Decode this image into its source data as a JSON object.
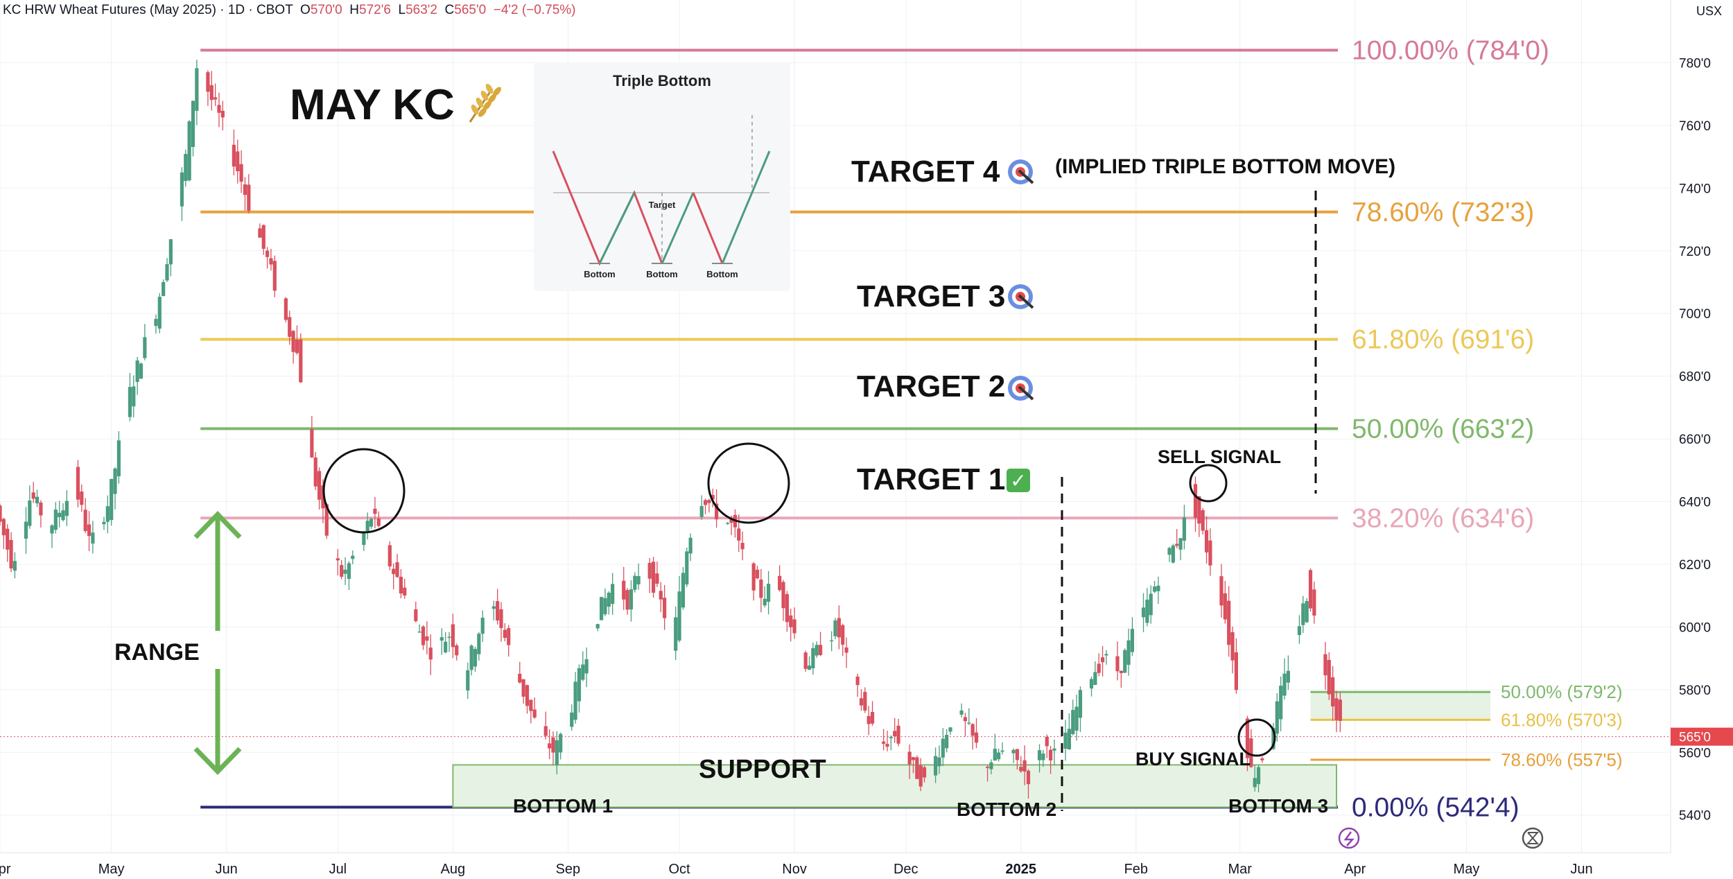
{
  "header": {
    "symbol": "KC HRW Wheat Futures (May 2025) · 1D · CBOT",
    "open_label": "O",
    "open": "570'0",
    "high_label": "H",
    "high": "572'6",
    "low_label": "L",
    "low": "563'2",
    "close_label": "C",
    "close": "565'0",
    "change": "−4'2 (−0.75%)",
    "currency": "USX"
  },
  "title": "MAY KC",
  "title_icon": "wheat-icon",
  "inset": {
    "title": "Triple Bottom",
    "target_label": "Target",
    "bottom_labels": [
      "Bottom",
      "Bottom",
      "Bottom"
    ]
  },
  "chart_data": {
    "type": "candlestick",
    "y_axis": {
      "range": [
        528,
        800
      ],
      "ticks": [
        540,
        560,
        580,
        600,
        620,
        640,
        660,
        680,
        700,
        720,
        740,
        760,
        780
      ],
      "tick_labels": [
        "540'0",
        "560'0",
        "580'0",
        "600'0",
        "620'0",
        "640'0",
        "660'0",
        "680'0",
        "700'0",
        "720'0",
        "740'0",
        "760'0",
        "780'0"
      ],
      "position": "right"
    },
    "x_axis": {
      "range": [
        "2024-04-01",
        "2025-06-25"
      ],
      "ticks": [
        {
          "date": "2024-04-01",
          "label": "Apr"
        },
        {
          "date": "2024-05-01",
          "label": "May"
        },
        {
          "date": "2024-06-01",
          "label": "Jun"
        },
        {
          "date": "2024-07-01",
          "label": "Jul"
        },
        {
          "date": "2024-08-01",
          "label": "Aug"
        },
        {
          "date": "2024-09-01",
          "label": "Sep"
        },
        {
          "date": "2024-10-01",
          "label": "Oct"
        },
        {
          "date": "2024-11-01",
          "label": "Nov"
        },
        {
          "date": "2024-12-01",
          "label": "Dec"
        },
        {
          "date": "2025-01-01",
          "label": "2025"
        },
        {
          "date": "2025-02-01",
          "label": "Feb"
        },
        {
          "date": "2025-03-01",
          "label": "Mar"
        },
        {
          "date": "2025-04-01",
          "label": "Apr"
        },
        {
          "date": "2025-05-01",
          "label": "May"
        },
        {
          "date": "2025-06-01",
          "label": "Jun"
        }
      ]
    },
    "grid": true,
    "colors": {
      "up": "#4a9d7f",
      "down": "#d9505e"
    },
    "path": [
      [
        "2024-04-01",
        636
      ],
      [
        "2024-04-05",
        620
      ],
      [
        "2024-04-10",
        642
      ],
      [
        "2024-04-15",
        632
      ],
      [
        "2024-04-22",
        645
      ],
      [
        "2024-04-26",
        626
      ],
      [
        "2024-05-01",
        640
      ],
      [
        "2024-05-06",
        672
      ],
      [
        "2024-05-10",
        688
      ],
      [
        "2024-05-14",
        702
      ],
      [
        "2024-05-18",
        726
      ],
      [
        "2024-05-22",
        752
      ],
      [
        "2024-05-25",
        782
      ],
      [
        "2024-05-28",
        770
      ],
      [
        "2024-05-31",
        762
      ],
      [
        "2024-06-05",
        745
      ],
      [
        "2024-06-09",
        730
      ],
      [
        "2024-06-13",
        716
      ],
      [
        "2024-06-17",
        700
      ],
      [
        "2024-06-21",
        686
      ],
      [
        "2024-06-25",
        650
      ],
      [
        "2024-06-29",
        628
      ],
      [
        "2024-07-03",
        616
      ],
      [
        "2024-07-07",
        625
      ],
      [
        "2024-07-11",
        636
      ],
      [
        "2024-07-15",
        622
      ],
      [
        "2024-07-19",
        612
      ],
      [
        "2024-07-23",
        600
      ],
      [
        "2024-07-27",
        592
      ],
      [
        "2024-08-01",
        598
      ],
      [
        "2024-08-05",
        585
      ],
      [
        "2024-08-09",
        600
      ],
      [
        "2024-08-13",
        606
      ],
      [
        "2024-08-17",
        592
      ],
      [
        "2024-08-21",
        578
      ],
      [
        "2024-08-25",
        566
      ],
      [
        "2024-08-29",
        560
      ],
      [
        "2024-09-02",
        572
      ],
      [
        "2024-09-06",
        590
      ],
      [
        "2024-09-10",
        605
      ],
      [
        "2024-09-14",
        614
      ],
      [
        "2024-09-18",
        608
      ],
      [
        "2024-09-22",
        622
      ],
      [
        "2024-09-26",
        610
      ],
      [
        "2024-09-30",
        596
      ],
      [
        "2024-10-04",
        628
      ],
      [
        "2024-10-08",
        642
      ],
      [
        "2024-10-12",
        636
      ],
      [
        "2024-10-16",
        632
      ],
      [
        "2024-10-20",
        618
      ],
      [
        "2024-10-24",
        610
      ],
      [
        "2024-10-28",
        614
      ],
      [
        "2024-11-01",
        600
      ],
      [
        "2024-11-05",
        588
      ],
      [
        "2024-11-09",
        594
      ],
      [
        "2024-11-13",
        600
      ],
      [
        "2024-11-17",
        584
      ],
      [
        "2024-11-21",
        572
      ],
      [
        "2024-11-25",
        562
      ],
      [
        "2024-11-29",
        566
      ],
      [
        "2024-12-03",
        556
      ],
      [
        "2024-12-07",
        550
      ],
      [
        "2024-12-11",
        562
      ],
      [
        "2024-12-15",
        574
      ],
      [
        "2024-12-19",
        566
      ],
      [
        "2024-12-23",
        556
      ],
      [
        "2024-12-27",
        560
      ],
      [
        "2024-12-31",
        558
      ],
      [
        "2025-01-04",
        552
      ],
      [
        "2025-01-08",
        562
      ],
      [
        "2025-01-12",
        558
      ],
      [
        "2025-01-16",
        572
      ],
      [
        "2025-01-20",
        584
      ],
      [
        "2025-01-24",
        590
      ],
      [
        "2025-01-28",
        586
      ],
      [
        "2025-02-01",
        598
      ],
      [
        "2025-02-05",
        608
      ],
      [
        "2025-02-09",
        620
      ],
      [
        "2025-02-13",
        628
      ],
      [
        "2025-02-17",
        640
      ],
      [
        "2025-02-21",
        624
      ],
      [
        "2025-02-25",
        608
      ],
      [
        "2025-03-01",
        580
      ],
      [
        "2025-03-05",
        552
      ],
      [
        "2025-03-09",
        562
      ],
      [
        "2025-03-13",
        580
      ],
      [
        "2025-03-17",
        598
      ],
      [
        "2025-03-20",
        612
      ],
      [
        "2025-03-24",
        590
      ],
      [
        "2025-03-27",
        575
      ],
      [
        "2025-03-30",
        565
      ]
    ],
    "levels": [
      {
        "name": "fib-100",
        "label": "100.00% (784'0)",
        "value": 784,
        "color": "#d5799a",
        "from": "2024-05-25"
      },
      {
        "name": "fib-786",
        "label": "78.60% (732'3)",
        "value": 732.375,
        "color": "#e6a13c",
        "from": "2024-05-25"
      },
      {
        "name": "fib-618",
        "label": "61.80% (691'6)",
        "value": 691.75,
        "color": "#ecc85a",
        "from": "2024-05-25"
      },
      {
        "name": "fib-50",
        "label": "50.00% (663'2)",
        "value": 663.25,
        "color": "#7fb86b",
        "from": "2024-05-25"
      },
      {
        "name": "fib-382",
        "label": "38.20% (634'6)",
        "value": 634.75,
        "color": "#e8a6b7",
        "from": "2024-05-25"
      },
      {
        "name": "fib-0",
        "label": "0.00% (542'4)",
        "value": 542.5,
        "color": "#2c2a7a",
        "from": "2024-05-25"
      }
    ],
    "retracements": [
      {
        "label": "50.00% (579'2)",
        "value": 579.25,
        "color": "#7fb86b"
      },
      {
        "label": "61.80% (570'3)",
        "value": 570.375,
        "color": "#e8c14a"
      },
      {
        "label": "78.60% (557'5)",
        "value": 557.625,
        "color": "#e6a13c"
      }
    ],
    "last_price": {
      "value": 565,
      "label": "565'0"
    },
    "annotations": {
      "target4": "TARGET 4",
      "target4_note": "(IMPLIED TRIPLE BOTTOM MOVE)",
      "target3": "TARGET 3",
      "target2": "TARGET 2",
      "target1": "TARGET 1",
      "target1_check": "✓",
      "sell_signal": "SELL SIGNAL",
      "buy_signal": "BUY SIGNAL",
      "support": "SUPPORT",
      "range": "RANGE",
      "bottom1": "BOTTOM 1",
      "bottom2": "BOTTOM 2",
      "bottom3": "BOTTOM 3"
    }
  }
}
